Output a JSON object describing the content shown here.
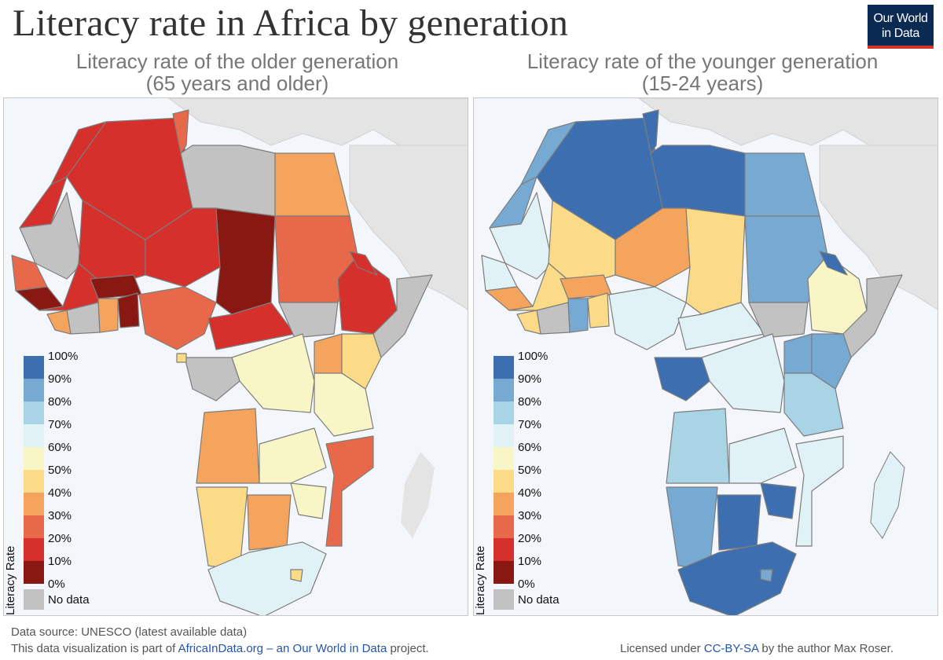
{
  "title": "Literacy rate in Africa by generation",
  "logo": {
    "line1": "Our World",
    "line2": "in Data"
  },
  "left_map": {
    "subtitle_line1": "Literacy rate of the older generation",
    "subtitle_line2": "(65 years and older)"
  },
  "right_map": {
    "subtitle_line1": "Literacy rate of the younger generation",
    "subtitle_line2": "(15-24 years)"
  },
  "legend": {
    "title": "Literacy Rate",
    "items": [
      {
        "label": "100%",
        "color": "#3d6fb0"
      },
      {
        "label": "90%",
        "color": "#77aad2"
      },
      {
        "label": "80%",
        "color": "#a9d4e6"
      },
      {
        "label": "70%",
        "color": "#e0f2f5"
      },
      {
        "label": "60%",
        "color": "#f8f6c6"
      },
      {
        "label": "50%",
        "color": "#fbdb88"
      },
      {
        "label": "40%",
        "color": "#f4a45c"
      },
      {
        "label": "30%",
        "color": "#e8694a"
      },
      {
        "label": "20%",
        "color": "#d5302b"
      },
      {
        "label": "10%",
        "color": "#8a1812"
      },
      {
        "label": "0%",
        "color": ""
      }
    ],
    "no_data": {
      "label": "No data",
      "color": "#c2c2c2"
    }
  },
  "footer": {
    "source": "Data source: UNESCO (latest available data)",
    "project_prefix": "This data visualization is part of ",
    "project_link": "AfricaInData.org – an Our World in Data",
    "project_suffix": " project.",
    "license_prefix": "Licensed under ",
    "license_link": "CC-BY-SA",
    "license_suffix": " by the author Max Roser."
  }
}
